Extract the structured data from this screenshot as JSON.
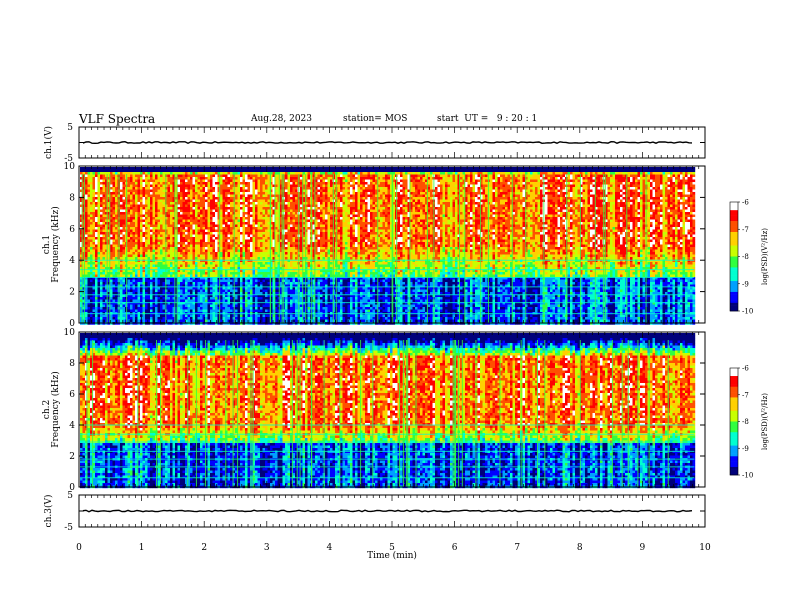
{
  "header": {
    "title": "VLF Spectra",
    "date": "Aug.28, 2023",
    "station": "station= MOS",
    "start": "start  UT =   9 : 20 : 1"
  },
  "colors": {
    "spectrum": [
      "#00007a",
      "#0000ff",
      "#00a0ff",
      "#00ffd0",
      "#30ff40",
      "#c8ff00",
      "#ffd000",
      "#ff5000",
      "#ff0000",
      "#ffffff"
    ]
  },
  "chart_data": [
    {
      "type": "line",
      "name": "ch.1 waveform",
      "ylabel": "ch.1(V)",
      "ylim": [
        -5,
        5
      ],
      "yticks": [
        "5",
        "-5"
      ],
      "level": 0
    },
    {
      "type": "heatmap",
      "name": "ch.1 spectrogram",
      "ylabel_top": "ch.1",
      "ylabel": "Frequency (kHz)",
      "ylim": [
        0,
        10
      ],
      "yticks": [
        "0",
        "2",
        "4",
        "6",
        "8",
        "10"
      ],
      "colorbar": {
        "label": "log(PSD)(V²/Hz)",
        "ticks": [
          "-6",
          "-7",
          "-8",
          "-9",
          "-10"
        ],
        "range": [
          -10,
          -6
        ]
      },
      "peak_band_khz": [
        5,
        9
      ]
    },
    {
      "type": "heatmap",
      "name": "ch.2 spectrogram",
      "ylabel_top": "ch.2",
      "ylabel": "Frequency (kHz)",
      "ylim": [
        0,
        10
      ],
      "yticks": [
        "0",
        "2",
        "4",
        "6",
        "8",
        "10"
      ],
      "colorbar": {
        "label": "log(PSD)(V²/Hz)",
        "ticks": [
          "-6",
          "-7",
          "-8",
          "-9",
          "-10"
        ],
        "range": [
          -10,
          -6
        ]
      },
      "peak_band_khz": [
        4,
        8
      ]
    },
    {
      "type": "line",
      "name": "ch.3 waveform",
      "ylabel": "ch.3(V)",
      "ylim": [
        -5,
        5
      ],
      "yticks": [
        "5",
        "-5"
      ],
      "level": 0
    }
  ],
  "xaxis": {
    "label": "Time  (min)",
    "ticks": [
      "0",
      "1",
      "2",
      "3",
      "4",
      "5",
      "6",
      "7",
      "8",
      "9",
      "10"
    ],
    "range": [
      0,
      10
    ],
    "data_end": 9.83
  }
}
